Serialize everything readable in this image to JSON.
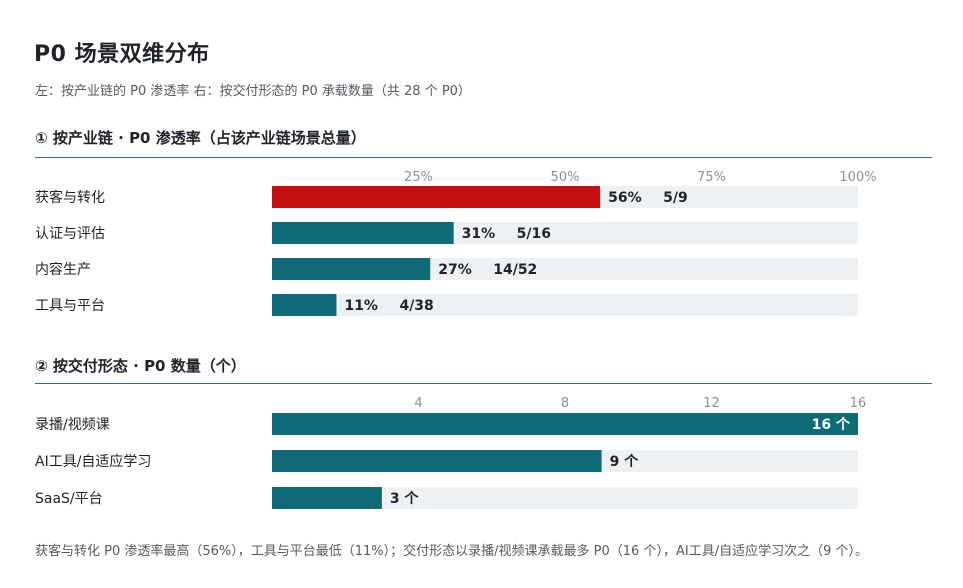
{
  "title": "P0 场景双维分布",
  "subtitle": "左：按产业链的 P0 渗透率    右：按交付形态的 P0 承载数量（共 28 个 P0）",
  "colors": {
    "teal": "#0f6a78",
    "red": "#c30f0f",
    "track": "#eef1f3",
    "rule": "#2a6f7c"
  },
  "chart_data": [
    {
      "type": "bar",
      "orientation": "horizontal",
      "title": "① 按产业链 · P0 渗透率（占该产业链场景总量）",
      "categories": [
        "获客与转化",
        "认证与评估",
        "内容生产",
        "工具与平台"
      ],
      "values": [
        56,
        31,
        27,
        11
      ],
      "fractions": [
        "5/9",
        "5/16",
        "14/52",
        "4/38"
      ],
      "value_labels": [
        "56%",
        "31%",
        "27%",
        "11%"
      ],
      "highlight_index": 0,
      "xlim": [
        0,
        100
      ],
      "ticks": [
        25,
        50,
        75,
        100
      ],
      "tick_labels": [
        "25%",
        "50%",
        "75%",
        "100%"
      ]
    },
    {
      "type": "bar",
      "orientation": "horizontal",
      "title": "② 按交付形态 · P0 数量（个）",
      "categories": [
        "录播/视频课",
        "AI工具/自适应学习",
        "SaaS/平台"
      ],
      "values": [
        16,
        9,
        3
      ],
      "value_labels": [
        "16 个",
        "9 个",
        "3 个"
      ],
      "xlim": [
        0,
        16
      ],
      "ticks": [
        4,
        8,
        12,
        16
      ],
      "tick_labels": [
        "4",
        "8",
        "12",
        "16"
      ]
    }
  ],
  "footnote": "获客与转化 P0 渗透率最高（56%），工具与平台最低（11%）；交付形态以录播/视频课承载最多 P0（16 个），AI工具/自适应学习次之（9 个）。"
}
